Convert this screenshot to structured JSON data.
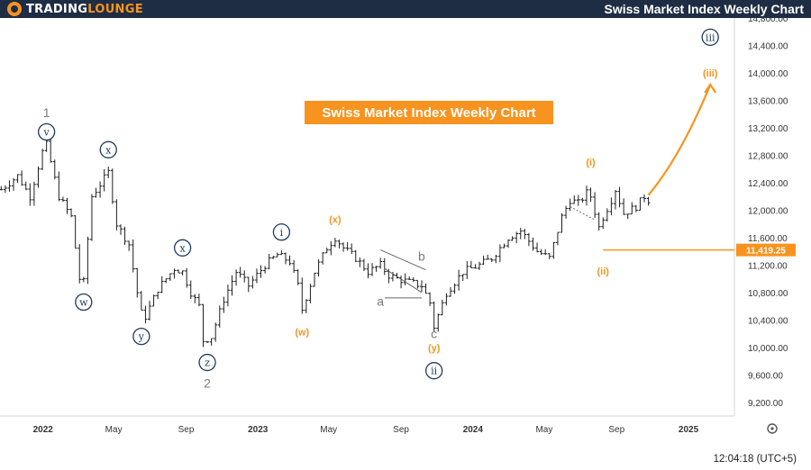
{
  "header": {
    "logo_part1": "TRADING",
    "logo_part2": "LOUNGE",
    "title": "Swiss Market Index Weekly Chart"
  },
  "footer": {
    "time": "12:04:18 (UTC+5)"
  },
  "colors": {
    "frame": "#1f2d44",
    "accent": "#f7931e",
    "wave_navy": "#1f3a5c",
    "wave_grey": "#7a7a7a",
    "candle": "#1e1e1e",
    "level_label_bg": "#f7931e"
  },
  "icons": {
    "settings": "gear-icon"
  },
  "chart_data": {
    "type": "candlestick",
    "title": "Swiss Market Index Weekly Chart",
    "x_axis": {
      "ticks": [
        "2022",
        "May",
        "Sep",
        "2023",
        "May",
        "Sep",
        "2024",
        "May",
        "Sep",
        "2025"
      ],
      "tick_dates": [
        "2022-01-01",
        "2022-05-01",
        "2022-09-01",
        "2023-01-01",
        "2023-05-01",
        "2023-09-01",
        "2024-01-01",
        "2024-05-01",
        "2024-09-01",
        "2025-01-01"
      ],
      "range": [
        "2021-10-20",
        "2025-03-20"
      ]
    },
    "y_axis": {
      "ticks": [
        "9,200.00",
        "9,600.00",
        "10,000.00",
        "10,400.00",
        "10,800.00",
        "11,200.00",
        "11,600.00",
        "12,000.00",
        "12,400.00",
        "12,800.00",
        "13,200.00",
        "13,600.00",
        "14,000.00",
        "14,400.00",
        "14,800.00"
      ],
      "range": [
        9000,
        14800
      ]
    },
    "price_path": [
      [
        "2021-10-22",
        12300
      ],
      [
        "2021-11-19",
        12500
      ],
      [
        "2021-12-10",
        12200
      ],
      [
        "2021-12-31",
        12850
      ],
      [
        "2022-01-07",
        12950
      ],
      [
        "2022-01-28",
        12200
      ],
      [
        "2022-02-18",
        11900
      ],
      [
        "2022-03-04",
        11000
      ],
      [
        "2022-03-11",
        10950
      ],
      [
        "2022-03-25",
        12200
      ],
      [
        "2022-04-22",
        12550
      ],
      [
        "2022-05-06",
        11800
      ],
      [
        "2022-05-27",
        11500
      ],
      [
        "2022-06-10",
        10800
      ],
      [
        "2022-06-17",
        10500
      ],
      [
        "2022-06-24",
        10450
      ],
      [
        "2022-07-15",
        10850
      ],
      [
        "2022-08-12",
        11150
      ],
      [
        "2022-08-26",
        11100
      ],
      [
        "2022-09-09",
        10800
      ],
      [
        "2022-09-23",
        10600
      ],
      [
        "2022-09-30",
        10100
      ],
      [
        "2022-10-14",
        10150
      ],
      [
        "2022-11-04",
        10700
      ],
      [
        "2022-11-25",
        11100
      ],
      [
        "2022-12-16",
        10900
      ],
      [
        "2023-01-13",
        11200
      ],
      [
        "2023-02-03",
        11350
      ],
      [
        "2023-02-24",
        11250
      ],
      [
        "2023-03-10",
        10900
      ],
      [
        "2023-03-17",
        10550
      ],
      [
        "2023-04-07",
        11100
      ],
      [
        "2023-04-28",
        11450
      ],
      [
        "2023-05-12",
        11600
      ],
      [
        "2023-05-26",
        11450
      ],
      [
        "2023-06-16",
        11300
      ],
      [
        "2023-07-07",
        11100
      ],
      [
        "2023-07-28",
        11200
      ],
      [
        "2023-08-11",
        11050
      ],
      [
        "2023-08-25",
        11000
      ],
      [
        "2023-09-15",
        10950
      ],
      [
        "2023-10-06",
        10900
      ],
      [
        "2023-10-20",
        10650
      ],
      [
        "2023-10-27",
        10300
      ],
      [
        "2023-11-17",
        10800
      ],
      [
        "2023-12-15",
        11100
      ],
      [
        "2024-01-12",
        11200
      ],
      [
        "2024-02-02",
        11300
      ],
      [
        "2024-03-01",
        11600
      ],
      [
        "2024-03-22",
        11700
      ],
      [
        "2024-04-19",
        11400
      ],
      [
        "2024-05-10",
        11300
      ],
      [
        "2024-05-31",
        11900
      ],
      [
        "2024-06-14",
        12150
      ],
      [
        "2024-06-28",
        12100
      ],
      [
        "2024-07-12",
        12250
      ],
      [
        "2024-07-19",
        12200
      ],
      [
        "2024-08-02",
        11750
      ],
      [
        "2024-08-09",
        11900
      ],
      [
        "2024-08-23",
        12150
      ],
      [
        "2024-08-30",
        12300
      ],
      [
        "2024-09-13",
        11950
      ],
      [
        "2024-10-04",
        12050
      ],
      [
        "2024-10-18",
        12200
      ],
      [
        "2024-10-25",
        12150
      ]
    ],
    "wave_labels": [
      {
        "text": "1",
        "date": "2022-01-07",
        "price": 13420,
        "style": "plain_grey"
      },
      {
        "text": "v",
        "date": "2022-01-07",
        "price": 13140,
        "style": "circle_navy"
      },
      {
        "text": "w",
        "date": "2022-03-11",
        "price": 10660,
        "style": "circle_navy"
      },
      {
        "text": "x",
        "date": "2022-04-22",
        "price": 12880,
        "style": "circle_navy"
      },
      {
        "text": "y",
        "date": "2022-06-17",
        "price": 10160,
        "style": "circle_navy"
      },
      {
        "text": "x",
        "date": "2022-08-26",
        "price": 11450,
        "style": "circle_navy"
      },
      {
        "text": "z",
        "date": "2022-10-07",
        "price": 9780,
        "style": "circle_navy"
      },
      {
        "text": "2",
        "date": "2022-10-07",
        "price": 9480,
        "style": "plain_grey"
      },
      {
        "text": "i",
        "date": "2023-02-10",
        "price": 11680,
        "style": "circle_navy"
      },
      {
        "text": "(x)",
        "date": "2023-05-12",
        "price": 11870,
        "style": "plain_orange"
      },
      {
        "text": "(w)",
        "date": "2023-03-17",
        "price": 10230,
        "style": "plain_orange"
      },
      {
        "text": "a",
        "date": "2023-07-28",
        "price": 10670,
        "style": "plain_grey"
      },
      {
        "text": "b",
        "date": "2023-10-06",
        "price": 11330,
        "style": "plain_grey"
      },
      {
        "text": "c",
        "date": "2023-10-27",
        "price": 10200,
        "style": "plain_grey"
      },
      {
        "text": "(y)",
        "date": "2023-10-27",
        "price": 10000,
        "style": "plain_orange"
      },
      {
        "text": "ii",
        "date": "2023-10-27",
        "price": 9660,
        "style": "circle_navy"
      },
      {
        "text": "(i)",
        "date": "2024-07-19",
        "price": 12700,
        "style": "plain_orange"
      },
      {
        "text": "(ii)",
        "date": "2024-08-09",
        "price": 11110,
        "style": "plain_orange"
      },
      {
        "text": "iii",
        "date": "2025-02-07",
        "price": 14520,
        "style": "circle_navy"
      },
      {
        "text": "(iii)",
        "date": "2025-02-07",
        "price": 14000,
        "style": "plain_orange"
      }
    ],
    "annotations": {
      "chart_caption": "Swiss Market Index Weekly Chart",
      "level_line": {
        "value": 11419.25,
        "label": "11,419.25",
        "start": "2024-08-09"
      },
      "projection_arrow": {
        "from": [
          "2024-10-25",
          12220
        ],
        "to": [
          "2025-02-07",
          13830
        ]
      }
    }
  }
}
